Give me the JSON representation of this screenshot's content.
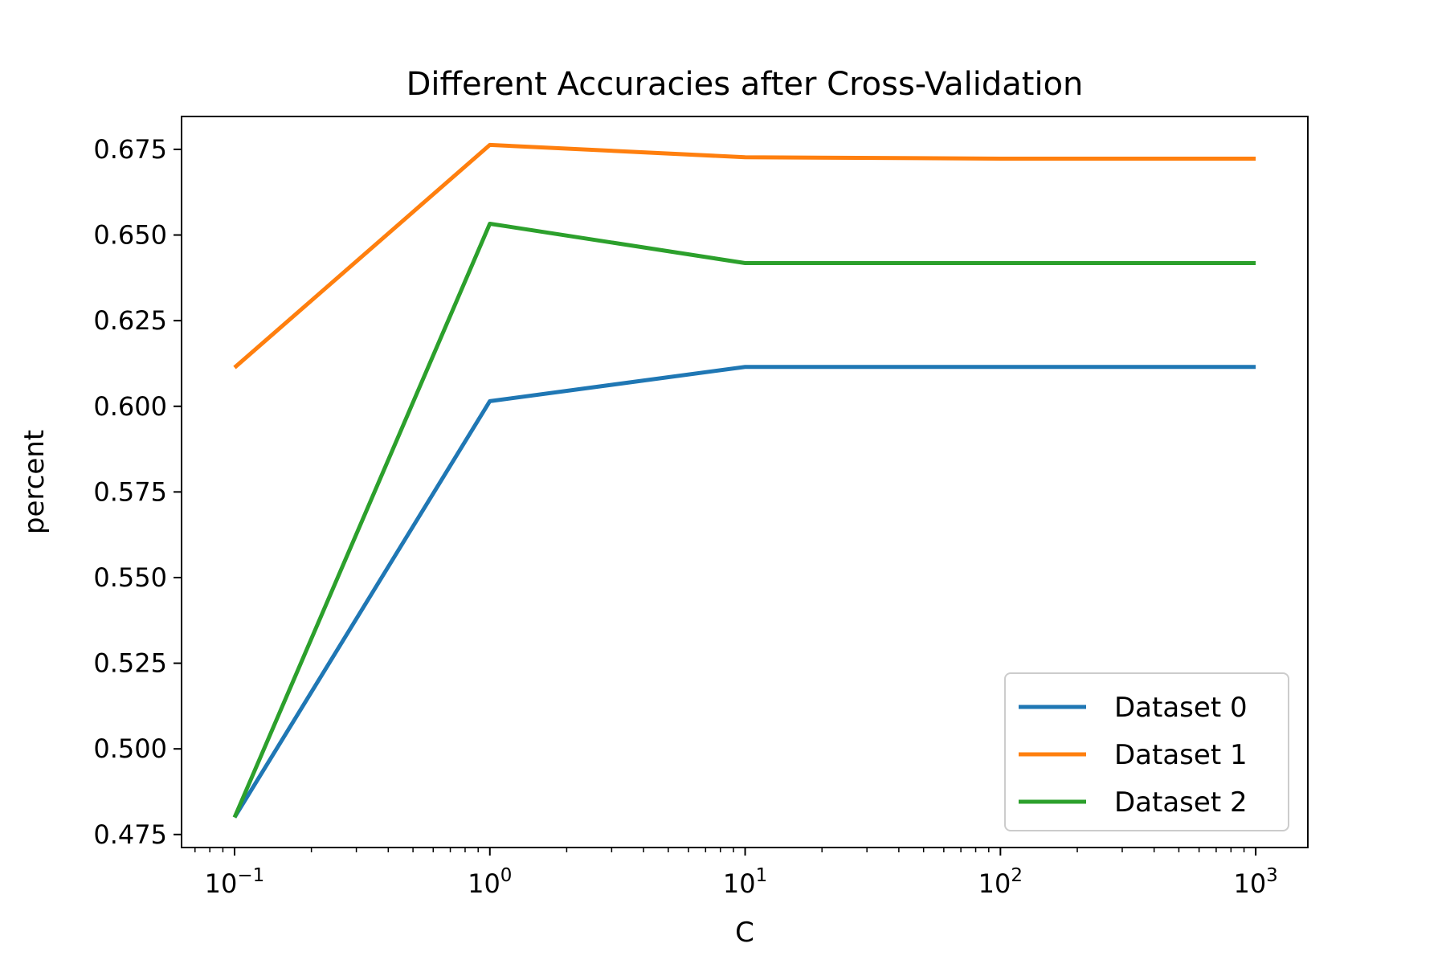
{
  "chart_data": {
    "type": "line",
    "title": "Different Accuracies after Cross-Validation",
    "xlabel": "C",
    "ylabel": "percent",
    "xscale": "log",
    "x": [
      0.1,
      1,
      10,
      100,
      1000
    ],
    "xlim": [
      0.062,
      1600
    ],
    "ylim": [
      0.4712,
      0.6846
    ],
    "x_ticks": [
      {
        "value": 0.1,
        "base": "10",
        "exp": "−1"
      },
      {
        "value": 1,
        "base": "10",
        "exp": "0"
      },
      {
        "value": 10,
        "base": "10",
        "exp": "1"
      },
      {
        "value": 100,
        "base": "10",
        "exp": "2"
      },
      {
        "value": 1000,
        "base": "10",
        "exp": "3"
      }
    ],
    "y_ticks": [
      0.475,
      0.5,
      0.525,
      0.55,
      0.575,
      0.6,
      0.625,
      0.65,
      0.675
    ],
    "y_tick_labels": [
      "0.475",
      "0.500",
      "0.525",
      "0.550",
      "0.575",
      "0.600",
      "0.625",
      "0.650",
      "0.675"
    ],
    "series": [
      {
        "name": "Dataset 0",
        "color": "#1f77b4",
        "values": [
          0.48,
          0.6015,
          0.6115,
          0.6115,
          0.6115
        ]
      },
      {
        "name": "Dataset 1",
        "color": "#ff7f0e",
        "values": [
          0.6113,
          0.6763,
          0.6727,
          0.6723,
          0.6723
        ]
      },
      {
        "name": "Dataset 2",
        "color": "#2ca02c",
        "values": [
          0.48,
          0.6533,
          0.6418,
          0.6418,
          0.6418
        ]
      }
    ],
    "grid": false,
    "legend": "lower right"
  }
}
